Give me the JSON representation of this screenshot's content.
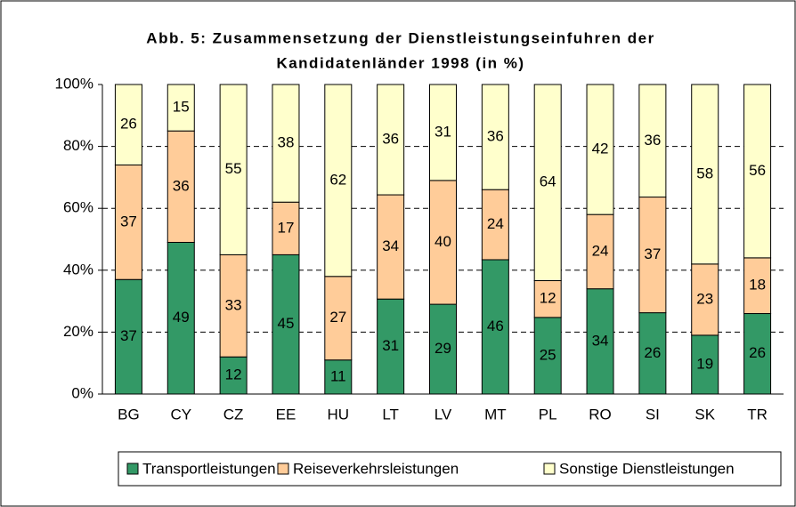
{
  "chart_data": {
    "type": "bar",
    "stacking": "percent",
    "title": [
      "Abb. 5: Zusammensetzung der Dienstleistungseinfuhren der",
      "Kandidatenländer 1998 (in %)"
    ],
    "categories": [
      "BG",
      "CY",
      "CZ",
      "EE",
      "HU",
      "LT",
      "LV",
      "MT",
      "PL",
      "RO",
      "SI",
      "SK",
      "TR"
    ],
    "series": [
      {
        "name": "Transportleistungen",
        "color": "#339966",
        "values": [
          37,
          49,
          12,
          45,
          11,
          31,
          29,
          46,
          25,
          34,
          26,
          19,
          26
        ]
      },
      {
        "name": "Reiseverkehrsleistungen",
        "color": "#ffcc99",
        "values": [
          37,
          36,
          33,
          17,
          27,
          34,
          40,
          24,
          12,
          24,
          37,
          23,
          18
        ]
      },
      {
        "name": "Sonstige Dienstleistungen",
        "color": "#ffffcc",
        "values": [
          26,
          15,
          55,
          38,
          62,
          36,
          31,
          36,
          64,
          42,
          36,
          58,
          56
        ]
      }
    ],
    "ylim": [
      0,
      100
    ],
    "yticks": [
      {
        "value": 0,
        "label": "0%"
      },
      {
        "value": 20,
        "label": "20%"
      },
      {
        "value": 40,
        "label": "40%"
      },
      {
        "value": 60,
        "label": "60%"
      },
      {
        "value": 80,
        "label": "80%"
      },
      {
        "value": 100,
        "label": "100%"
      }
    ],
    "grid": true,
    "legend": "bottom"
  }
}
